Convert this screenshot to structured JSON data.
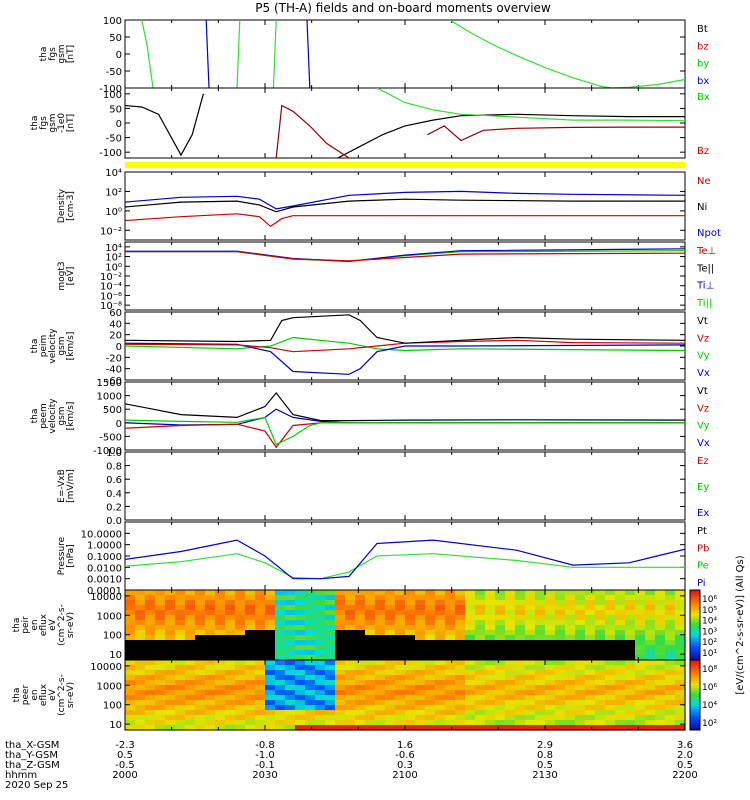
{
  "title": "P5 (TH-A) fields and on-board moments overview",
  "chart_data": [
    {
      "type": "line",
      "ylabel_lines": [
        "tha",
        "fgs",
        "gsm",
        "[nT]"
      ],
      "ylim": [
        -100,
        100
      ],
      "yticks": [
        "100",
        "50",
        "0",
        "-50",
        "-100"
      ],
      "ytick_values": [
        100,
        50,
        0,
        -50,
        -100
      ],
      "legend": [
        {
          "name": "Bt",
          "color": "#000000"
        },
        {
          "name": "bz",
          "color": "#cc0000"
        },
        {
          "name": "by",
          "color": "#00cc00"
        },
        {
          "name": "bx",
          "color": "#0000cc"
        }
      ],
      "series": [
        {
          "name": "by",
          "color": "#33dd33",
          "x": [
            0.03,
            0.04,
            0.05
          ],
          "values": [
            100,
            20,
            -100
          ]
        },
        {
          "name": "by",
          "color": "#33dd33",
          "x": [
            0.2,
            0.205
          ],
          "values": [
            -100,
            100
          ]
        },
        {
          "name": "by",
          "color": "#33dd33",
          "x": [
            0.265,
            0.27
          ],
          "values": [
            -100,
            100
          ]
        },
        {
          "name": "bx",
          "color": "#0000cc",
          "x": [
            0.145,
            0.15
          ],
          "values": [
            100,
            -100
          ]
        },
        {
          "name": "bx",
          "color": "#0000cc",
          "x": [
            0.325,
            0.33
          ],
          "values": [
            100,
            -100
          ]
        },
        {
          "name": "by",
          "color": "#33dd33",
          "x": [
            0.58,
            0.62,
            0.66,
            0.7,
            0.75,
            0.8,
            0.85,
            0.87,
            0.9,
            0.95,
            1.0
          ],
          "values": [
            100,
            60,
            25,
            -5,
            -40,
            -70,
            -95,
            -100,
            -98,
            -90,
            -75
          ]
        }
      ]
    },
    {
      "type": "line",
      "ylabel_lines": [
        "tha",
        "fgs",
        "gsm",
        "-1e0",
        "[nT]"
      ],
      "ylim": [
        -120,
        120
      ],
      "yticks": [
        "100",
        "50",
        "0",
        "-50",
        "-100"
      ],
      "ytick_values": [
        100,
        50,
        0,
        -50,
        -100
      ],
      "legend": [
        {
          "name": "Bx",
          "color": "#00cc00"
        },
        {
          "name": "Bz",
          "color": "#cc0000"
        }
      ],
      "series": [
        {
          "name": "Bt",
          "color": "#000000",
          "x": [
            0.0,
            0.03,
            0.06,
            0.08,
            0.1,
            0.12,
            0.14
          ],
          "values": [
            60,
            55,
            30,
            -40,
            -110,
            -40,
            100
          ]
        },
        {
          "name": "Bt",
          "color": "#000000",
          "x": [
            0.38,
            0.42,
            0.46,
            0.5,
            0.55,
            0.6,
            0.7,
            0.8,
            0.9,
            1.0
          ],
          "values": [
            -120,
            -80,
            -40,
            -10,
            10,
            25,
            30,
            25,
            22,
            22
          ]
        },
        {
          "name": "Bx",
          "color": "#33dd33",
          "x": [
            0.45,
            0.5,
            0.55,
            0.6,
            0.65,
            0.7,
            0.8,
            0.9,
            1.0
          ],
          "values": [
            120,
            70,
            45,
            30,
            25,
            20,
            10,
            10,
            8
          ]
        },
        {
          "name": "Bz",
          "color": "#990000",
          "x": [
            0.27,
            0.28,
            0.3,
            0.33,
            0.36,
            0.4
          ],
          "values": [
            -120,
            60,
            40,
            -10,
            -70,
            -120
          ]
        },
        {
          "name": "Bz",
          "color": "#990000",
          "x": [
            0.54,
            0.57,
            0.6,
            0.64,
            0.7,
            0.8,
            0.9,
            1.0
          ],
          "values": [
            -40,
            -10,
            -60,
            -25,
            -18,
            -15,
            -14,
            -14
          ]
        }
      ]
    },
    {
      "type": "line",
      "ylabel_lines": [
        "Density",
        "[cm-3]"
      ],
      "yscale": "log",
      "ylim": [
        -3,
        4
      ],
      "yticks": [
        "10⁴",
        "10²",
        "10⁰",
        "10⁻²"
      ],
      "ytick_values": [
        4,
        2,
        0,
        -2
      ],
      "legend": [
        {
          "name": "Ne",
          "color": "#cc0000"
        },
        {
          "name": "Ni",
          "color": "#000000"
        },
        {
          "name": "Npot",
          "color": "#0000cc"
        }
      ],
      "series": [
        {
          "name": "Npot",
          "color": "#0000cc",
          "x": [
            0.0,
            0.1,
            0.2,
            0.24,
            0.27,
            0.3,
            0.4,
            0.5,
            0.6,
            0.7,
            0.8,
            1.0
          ],
          "values": [
            0.9,
            1.4,
            1.5,
            1.2,
            0.2,
            0.5,
            1.6,
            1.9,
            2.0,
            1.8,
            1.7,
            1.6
          ]
        },
        {
          "name": "Ni",
          "color": "#000000",
          "x": [
            0.0,
            0.1,
            0.2,
            0.24,
            0.27,
            0.3,
            0.4,
            0.5,
            0.6,
            0.8,
            1.0
          ],
          "values": [
            0.4,
            0.9,
            1.0,
            0.6,
            -0.1,
            0.4,
            1.0,
            1.2,
            1.1,
            1.0,
            1.0
          ]
        },
        {
          "name": "Ne",
          "color": "#cc0000",
          "x": [
            0.0,
            0.1,
            0.2,
            0.24,
            0.26,
            0.28,
            0.3,
            0.4,
            0.5,
            0.6,
            0.8,
            1.0
          ],
          "values": [
            -1.0,
            -0.6,
            -0.3,
            -0.6,
            -1.6,
            -0.8,
            -0.5,
            -0.5,
            -0.5,
            -0.5,
            -0.5,
            -0.5
          ]
        }
      ]
    },
    {
      "type": "line",
      "ylabel_lines": [
        "mogt3",
        "[eV]"
      ],
      "yscale": "log",
      "ylim": [
        -9,
        5
      ],
      "yticks": [
        "10⁴",
        "10²",
        "10⁰",
        "10⁻²",
        "10⁻⁴",
        "10⁻⁶",
        "10⁻⁸"
      ],
      "ytick_values": [
        4,
        2,
        0,
        -2,
        -4,
        -6,
        -8
      ],
      "legend": [
        {
          "name": "Te⊥",
          "color": "#cc0000"
        },
        {
          "name": "Te||",
          "color": "#000000"
        },
        {
          "name": "Ti⊥",
          "color": "#0000cc"
        },
        {
          "name": "Ti||",
          "color": "#00cc00"
        }
      ],
      "series": [
        {
          "name": "Ti||",
          "color": "#00cc00",
          "x": [
            0.0,
            0.2,
            0.3,
            0.4,
            0.5,
            0.6,
            1.0
          ],
          "values": [
            3.0,
            3.0,
            1.5,
            1.0,
            2.2,
            3.0,
            3.2
          ]
        },
        {
          "name": "Ti⊥",
          "color": "#0000cc",
          "x": [
            0.0,
            0.2,
            0.3,
            0.4,
            0.5,
            0.6,
            1.0
          ],
          "values": [
            3.1,
            3.1,
            1.6,
            1.0,
            2.3,
            3.2,
            3.6
          ]
        },
        {
          "name": "Te⊥",
          "color": "#cc0000",
          "x": [
            0.0,
            0.2,
            0.3,
            0.4,
            0.5,
            0.6,
            1.0
          ],
          "values": [
            3.0,
            3.0,
            1.5,
            1.1,
            1.8,
            2.5,
            2.7
          ]
        }
      ]
    },
    {
      "type": "line",
      "ylabel_lines": [
        "tha",
        "peim",
        "velocity",
        "gsm",
        "[km/s]"
      ],
      "ylim": [
        -60,
        60
      ],
      "yticks": [
        "60",
        "40",
        "20",
        "0",
        "-20",
        "-40",
        "-60"
      ],
      "ytick_values": [
        60,
        40,
        20,
        0,
        -20,
        -40,
        -60
      ],
      "legend": [
        {
          "name": "Vt",
          "color": "#000000"
        },
        {
          "name": "Vz",
          "color": "#cc0000"
        },
        {
          "name": "Vy",
          "color": "#00cc00"
        },
        {
          "name": "Vx",
          "color": "#0000cc"
        }
      ],
      "series": [
        {
          "name": "Vy",
          "color": "#00cc00",
          "x": [
            0.0,
            0.2,
            0.26,
            0.3,
            0.4,
            0.45,
            0.5,
            0.6,
            1.0
          ],
          "values": [
            0,
            -5,
            0,
            15,
            5,
            -5,
            -8,
            -5,
            -8
          ]
        },
        {
          "name": "Vx",
          "color": "#0000cc",
          "x": [
            0.0,
            0.2,
            0.26,
            0.3,
            0.4,
            0.42,
            0.45,
            0.5,
            0.6,
            1.0
          ],
          "values": [
            5,
            3,
            -10,
            -45,
            -50,
            -40,
            -10,
            0,
            0,
            2
          ]
        },
        {
          "name": "Vz",
          "color": "#cc0000",
          "x": [
            0.0,
            0.2,
            0.26,
            0.3,
            0.4,
            0.5,
            0.6,
            0.7,
            0.8,
            1.0
          ],
          "values": [
            3,
            2,
            -3,
            -10,
            -5,
            5,
            8,
            10,
            6,
            5
          ]
        },
        {
          "name": "Vt",
          "color": "#000000",
          "x": [
            0.0,
            0.2,
            0.26,
            0.28,
            0.3,
            0.4,
            0.42,
            0.45,
            0.5,
            0.6,
            0.7,
            0.8,
            1.0
          ],
          "values": [
            10,
            8,
            10,
            45,
            50,
            55,
            45,
            15,
            5,
            10,
            15,
            12,
            10
          ]
        }
      ]
    },
    {
      "type": "line",
      "ylabel_lines": [
        "tha",
        "peem",
        "velocity",
        "gsm",
        "[km/s]"
      ],
      "ylim": [
        -1000,
        1500
      ],
      "yticks": [
        "1500",
        "1000",
        "500",
        "0",
        "-500",
        "-1000"
      ],
      "ytick_values": [
        1500,
        1000,
        500,
        0,
        -500,
        -1000
      ],
      "legend": [
        {
          "name": "Vt",
          "color": "#000000"
        },
        {
          "name": "Vz",
          "color": "#cc0000"
        },
        {
          "name": "Vy",
          "color": "#00cc00"
        },
        {
          "name": "Vx",
          "color": "#0000cc"
        }
      ],
      "series": [
        {
          "name": "Vx",
          "color": "#0000cc",
          "x": [
            0.0,
            0.1,
            0.2,
            0.25,
            0.27,
            0.3,
            0.35,
            0.4,
            1.0
          ],
          "values": [
            0,
            -80,
            -60,
            200,
            500,
            200,
            50,
            0,
            0
          ]
        },
        {
          "name": "Vz",
          "color": "#cc0000",
          "x": [
            0.0,
            0.1,
            0.2,
            0.25,
            0.27,
            0.3,
            0.35,
            1.0
          ],
          "values": [
            -200,
            -100,
            -50,
            -300,
            -900,
            -100,
            0,
            0
          ]
        },
        {
          "name": "Vy",
          "color": "#00cc00",
          "x": [
            0.0,
            0.1,
            0.2,
            0.25,
            0.27,
            0.3,
            0.33,
            0.35,
            1.0
          ],
          "values": [
            100,
            50,
            20,
            200,
            -800,
            -500,
            -100,
            0,
            0
          ]
        },
        {
          "name": "Vt",
          "color": "#000000",
          "x": [
            0.0,
            0.05,
            0.1,
            0.2,
            0.25,
            0.27,
            0.3,
            0.35,
            0.4,
            0.5,
            0.7,
            1.0
          ],
          "values": [
            700,
            500,
            300,
            200,
            600,
            1100,
            300,
            80,
            80,
            100,
            110,
            100
          ]
        }
      ]
    },
    {
      "type": "line",
      "ylabel_lines": [
        "E=-VxB",
        "[mV/m]"
      ],
      "ylim": [
        0,
        1
      ],
      "yticks": [
        "1.0",
        "0.8",
        "0.6",
        "0.4",
        "0.2",
        "0.0"
      ],
      "ytick_values": [
        1.0,
        0.8,
        0.6,
        0.4,
        0.2,
        0.0
      ],
      "legend": [
        {
          "name": "Ez",
          "color": "#cc0000"
        },
        {
          "name": "Ey",
          "color": "#00cc00"
        },
        {
          "name": "Ex",
          "color": "#0000cc"
        }
      ],
      "series": []
    },
    {
      "type": "line",
      "ylabel_lines": [
        "Pressure",
        "[nPa]"
      ],
      "yscale": "log",
      "ylim": [
        -4,
        2
      ],
      "yticks": [
        "10.0000",
        "1.0000",
        "0.1000",
        "0.0100",
        "0.0010",
        "0.0001"
      ],
      "ytick_values": [
        1,
        0,
        -1,
        -2,
        -3,
        -4
      ],
      "legend": [
        {
          "name": "Pt",
          "color": "#000000"
        },
        {
          "name": "Pb",
          "color": "#cc0000"
        },
        {
          "name": "Pe",
          "color": "#00cc00"
        },
        {
          "name": "Pi",
          "color": "#0000cc"
        }
      ],
      "series": [
        {
          "name": "Pe",
          "color": "#33dd33",
          "x": [
            0.0,
            0.1,
            0.2,
            0.25,
            0.3,
            0.35,
            0.4,
            0.45,
            0.55,
            0.7,
            0.8,
            0.9,
            1.0
          ],
          "values": [
            -1.9,
            -1.5,
            -0.8,
            -1.6,
            -2.9,
            -3.0,
            -2.4,
            -1.0,
            -0.8,
            -1.4,
            -2.0,
            -2.0,
            -2.0
          ]
        },
        {
          "name": "Pi",
          "color": "#0000cc",
          "x": [
            0.0,
            0.1,
            0.2,
            0.25,
            0.3,
            0.35,
            0.4,
            0.45,
            0.55,
            0.7,
            0.8,
            0.9,
            0.95,
            1.0
          ],
          "values": [
            -1.3,
            -0.6,
            0.4,
            -1.0,
            -3.0,
            -3.0,
            -2.8,
            0.1,
            0.4,
            -0.5,
            -1.8,
            -1.6,
            -1.0,
            -0.4
          ]
        }
      ]
    },
    {
      "type": "heatmap",
      "ylabel_lines": [
        "tha",
        "peir",
        "en",
        "eflux",
        "eV",
        "(cm^2-s-",
        "sr-eV)"
      ],
      "yscale": "log",
      "ylim": [
        5,
        20000
      ],
      "yticks": [
        "10000",
        "1000",
        "100",
        "10"
      ],
      "ytick_values": [
        10000,
        1000,
        100,
        10
      ],
      "colorbar_ticks": [
        "10⁶",
        "10⁵",
        "10⁴",
        "10³",
        "10²",
        "10¹"
      ]
    },
    {
      "type": "heatmap",
      "ylabel_lines": [
        "tha",
        "peer",
        "en",
        "eflux",
        "eV",
        "(cm^2-s-",
        "sr-eV)"
      ],
      "yscale": "log",
      "ylim": [
        5,
        20000
      ],
      "yticks": [
        "10000",
        "1000",
        "100",
        "10"
      ],
      "ytick_values": [
        10000,
        1000,
        100,
        10
      ],
      "colorbar_ticks": [
        "10⁸",
        "10⁶",
        "10⁴",
        "10²"
      ]
    }
  ],
  "colorbar_label": "[eV/(cm^2-s-sr-eV)] (All Qs)",
  "xaxis": {
    "row_labels": [
      "tha_X-GSM",
      "tha_Y-GSM",
      "tha_Z-GSM",
      "hhmm",
      "2020 Sep 25"
    ],
    "ticks": [
      {
        "pos": 0.0,
        "rows": [
          "-2.3",
          "0.5",
          "-0.5",
          "2000"
        ]
      },
      {
        "pos": 0.25,
        "rows": [
          "-0.8",
          "-1.0",
          "-0.1",
          "2030"
        ]
      },
      {
        "pos": 0.5,
        "rows": [
          "1.6",
          "-0.6",
          "0.3",
          "2100"
        ]
      },
      {
        "pos": 0.75,
        "rows": [
          "2.9",
          "0.8",
          "0.5",
          "2130"
        ]
      },
      {
        "pos": 1.0,
        "rows": [
          "3.6",
          "2.0",
          "0.5",
          "2200"
        ]
      }
    ]
  }
}
